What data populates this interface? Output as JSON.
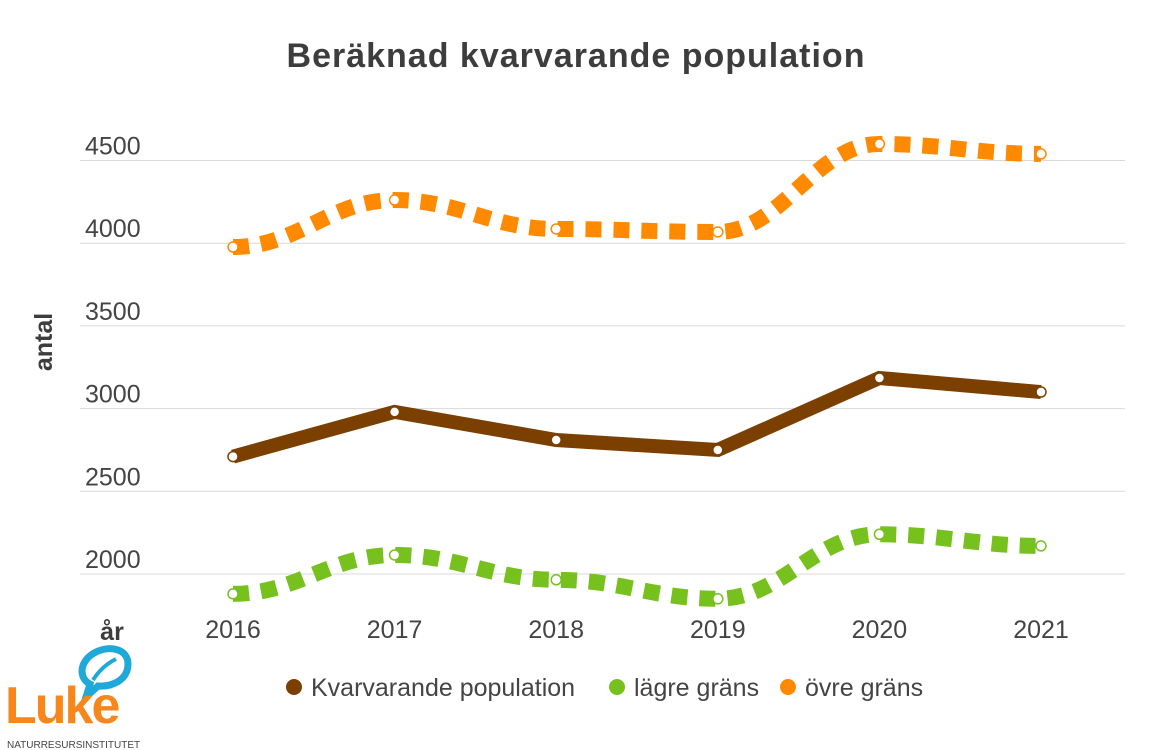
{
  "chart_data": {
    "type": "line",
    "title": "Beräknad kvarvarande population",
    "xlabel": "år",
    "ylabel": "antal",
    "x": [
      "2016",
      "2017",
      "2018",
      "2019",
      "2020",
      "2021"
    ],
    "yticks": [
      "2000",
      "2500",
      "3000",
      "3500",
      "4000",
      "4500"
    ],
    "ylim": [
      1850,
      4650
    ],
    "grid": true,
    "legend_position": "bottom",
    "series": [
      {
        "name": "Kvarvarande population",
        "color": "#7b3f00",
        "style": "solid",
        "values": [
          2710,
          2980,
          2810,
          2750,
          3185,
          3100
        ]
      },
      {
        "name": "lägre gräns",
        "color": "#77c11f",
        "style": "dashed",
        "values": [
          1880,
          2115,
          1965,
          1850,
          2240,
          2170
        ]
      },
      {
        "name": "övre gräns",
        "color": "#ff8a00",
        "style": "dashed",
        "values": [
          3977,
          4261,
          4086,
          4068,
          4600,
          4540
        ]
      }
    ]
  },
  "logo": {
    "name": "Luke",
    "subtitle": "NATURRESURSINSTITUTET"
  }
}
